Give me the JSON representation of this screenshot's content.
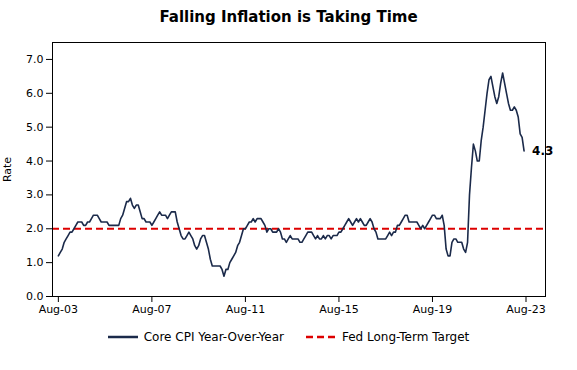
{
  "chart_data": {
    "type": "line",
    "title": "Falling Inflation is Taking Time",
    "ylabel": "Rate",
    "annotation": "4.3",
    "ylim": [
      0.0,
      7.5
    ],
    "yticks": [
      {
        "value": 0.0,
        "label": "0.0"
      },
      {
        "value": 1.0,
        "label": "1.0"
      },
      {
        "value": 2.0,
        "label": "2.0"
      },
      {
        "value": 3.0,
        "label": "3.0"
      },
      {
        "value": 4.0,
        "label": "4.0"
      },
      {
        "value": 5.0,
        "label": "5.0"
      },
      {
        "value": 6.0,
        "label": "6.0"
      },
      {
        "value": 7.0,
        "label": "7.0"
      }
    ],
    "xlim": [
      -3,
      250
    ],
    "xticks": [
      {
        "value": 0,
        "label": "Aug-03"
      },
      {
        "value": 48,
        "label": "Aug-07"
      },
      {
        "value": 96,
        "label": "Aug-11"
      },
      {
        "value": 144,
        "label": "Aug-15"
      },
      {
        "value": 192,
        "label": "Aug-19"
      },
      {
        "value": 240,
        "label": "Aug-23"
      }
    ],
    "grid": false,
    "legend": "bottom",
    "series": [
      {
        "name": "Core CPI Year-Over-Year",
        "color": "#1b2a4a",
        "line_style": "solid",
        "values": [
          1.2,
          1.3,
          1.4,
          1.6,
          1.7,
          1.8,
          1.9,
          1.9,
          2.0,
          2.1,
          2.2,
          2.2,
          2.2,
          2.1,
          2.1,
          2.2,
          2.2,
          2.3,
          2.4,
          2.4,
          2.4,
          2.3,
          2.2,
          2.2,
          2.2,
          2.2,
          2.1,
          2.1,
          2.1,
          2.1,
          2.1,
          2.1,
          2.3,
          2.4,
          2.6,
          2.8,
          2.8,
          2.9,
          2.7,
          2.6,
          2.7,
          2.7,
          2.5,
          2.3,
          2.3,
          2.2,
          2.2,
          2.2,
          2.1,
          2.2,
          2.3,
          2.4,
          2.5,
          2.4,
          2.4,
          2.4,
          2.3,
          2.4,
          2.5,
          2.5,
          2.5,
          2.2,
          2.0,
          1.8,
          1.7,
          1.7,
          1.8,
          1.9,
          1.8,
          1.7,
          1.5,
          1.4,
          1.5,
          1.7,
          1.8,
          1.8,
          1.6,
          1.4,
          1.1,
          0.9,
          0.9,
          0.9,
          0.9,
          0.9,
          0.8,
          0.6,
          0.8,
          0.8,
          1.0,
          1.1,
          1.2,
          1.3,
          1.5,
          1.6,
          1.8,
          2.0,
          2.0,
          2.1,
          2.2,
          2.2,
          2.3,
          2.2,
          2.3,
          2.3,
          2.3,
          2.2,
          2.1,
          1.9,
          2.0,
          2.0,
          1.9,
          1.9,
          1.9,
          2.0,
          1.9,
          1.7,
          1.7,
          1.6,
          1.7,
          1.8,
          1.7,
          1.7,
          1.7,
          1.7,
          1.6,
          1.6,
          1.7,
          1.8,
          1.9,
          1.9,
          1.9,
          1.8,
          1.7,
          1.8,
          1.7,
          1.7,
          1.8,
          1.7,
          1.8,
          1.8,
          1.7,
          1.8,
          1.8,
          1.8,
          1.9,
          1.9,
          2.0,
          2.1,
          2.2,
          2.3,
          2.2,
          2.1,
          2.2,
          2.3,
          2.2,
          2.3,
          2.2,
          2.1,
          2.1,
          2.2,
          2.3,
          2.2,
          2.0,
          1.9,
          1.7,
          1.7,
          1.7,
          1.7,
          1.7,
          1.8,
          1.9,
          1.8,
          1.9,
          1.9,
          2.1,
          2.1,
          2.2,
          2.3,
          2.4,
          2.4,
          2.2,
          2.2,
          2.2,
          2.2,
          2.2,
          2.1,
          2.0,
          2.1,
          2.0,
          2.1,
          2.2,
          2.3,
          2.4,
          2.4,
          2.3,
          2.3,
          2.3,
          2.4,
          2.1,
          1.4,
          1.2,
          1.2,
          1.6,
          1.7,
          1.7,
          1.6,
          1.6,
          1.6,
          1.4,
          1.3,
          1.6,
          3.0,
          3.8,
          4.5,
          4.3,
          4.0,
          4.0,
          4.6,
          5.0,
          5.5,
          6.0,
          6.4,
          6.5,
          6.2,
          5.9,
          5.7,
          5.9,
          6.3,
          6.6,
          6.3,
          6.0,
          5.7,
          5.5,
          5.5,
          5.6,
          5.5,
          5.3,
          4.8,
          4.7,
          4.3
        ]
      },
      {
        "name": "Fed Long-Term Target",
        "color": "#dd0000",
        "type": "hline",
        "line_style": "dashed",
        "values": [
          2.0
        ]
      }
    ]
  }
}
